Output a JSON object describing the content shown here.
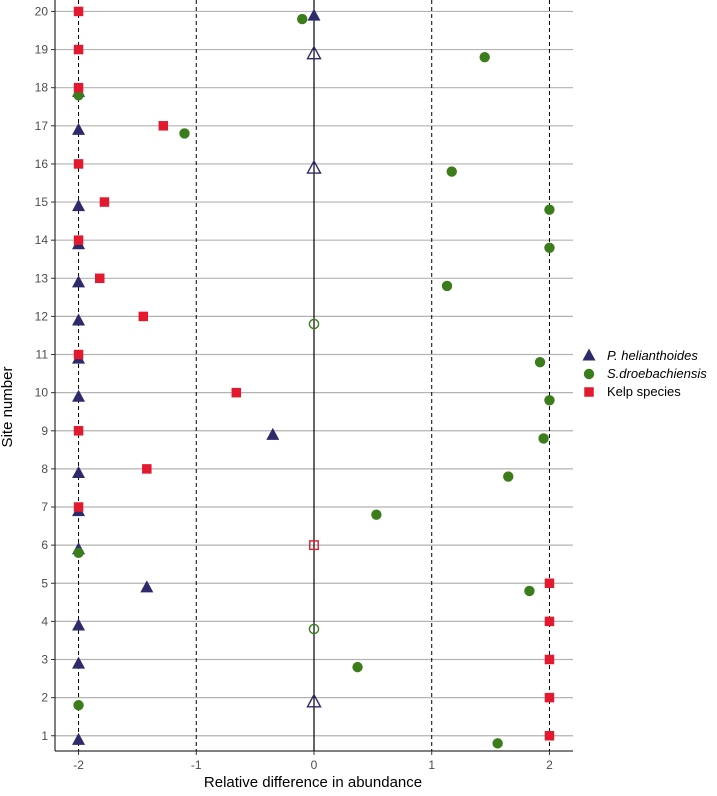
{
  "chart_data": {
    "type": "scatter",
    "xlabel": "Relative difference in abundance",
    "ylabel": "Site number",
    "xlim": [
      -2.2,
      2.2
    ],
    "ylim": [
      0.6,
      20.3
    ],
    "x_ticks": [
      "-2",
      "-1",
      "0",
      "1",
      "2"
    ],
    "y_ticks": [
      "1",
      "2",
      "3",
      "4",
      "5",
      "6",
      "7",
      "8",
      "9",
      "10",
      "11",
      "12",
      "13",
      "14",
      "15",
      "16",
      "17",
      "18",
      "19",
      "20"
    ],
    "x_tick_values": [
      -2,
      -1,
      0,
      1,
      2
    ],
    "y_tick_values": [
      1,
      2,
      3,
      4,
      5,
      6,
      7,
      8,
      9,
      10,
      11,
      12,
      13,
      14,
      15,
      16,
      17,
      18,
      19,
      20
    ],
    "vertical_reference_lines": {
      "dashed": [
        -2,
        -1,
        1,
        2
      ],
      "solid": [
        0
      ]
    },
    "grid": "horizontal major gridlines at each site",
    "legend_position": "right",
    "series": [
      {
        "name": "P. helianthoides",
        "italic": true,
        "marker": "triangle",
        "color": "#2e2a6b",
        "points": [
          {
            "site": 1,
            "x": -2,
            "filled": true
          },
          {
            "site": 2,
            "x": 0,
            "filled": false
          },
          {
            "site": 3,
            "x": -2,
            "filled": true
          },
          {
            "site": 4,
            "x": -2,
            "filled": true
          },
          {
            "site": 5,
            "x": -1.42,
            "filled": true
          },
          {
            "site": 6,
            "x": -2,
            "filled": true
          },
          {
            "site": 7,
            "x": -2,
            "filled": true
          },
          {
            "site": 8,
            "x": -2,
            "filled": true
          },
          {
            "site": 9,
            "x": -0.35,
            "filled": true
          },
          {
            "site": 10,
            "x": -2,
            "filled": true
          },
          {
            "site": 11,
            "x": -2,
            "filled": true
          },
          {
            "site": 12,
            "x": -2,
            "filled": true
          },
          {
            "site": 13,
            "x": -2,
            "filled": true
          },
          {
            "site": 14,
            "x": -2,
            "filled": true
          },
          {
            "site": 15,
            "x": -2,
            "filled": true
          },
          {
            "site": 16,
            "x": 0,
            "filled": false
          },
          {
            "site": 17,
            "x": -2,
            "filled": true
          },
          {
            "site": 18,
            "x": -2,
            "filled": true
          },
          {
            "site": 19,
            "x": 0,
            "filled": false
          },
          {
            "site": 20,
            "x": 0,
            "filled": true
          }
        ]
      },
      {
        "name": "S.droebachiensis",
        "italic": true,
        "marker": "circle",
        "color": "#3a7d1a",
        "points": [
          {
            "site": 1,
            "x": 1.56,
            "filled": true
          },
          {
            "site": 2,
            "x": -2,
            "filled": true
          },
          {
            "site": 3,
            "x": 0.37,
            "filled": true
          },
          {
            "site": 4,
            "x": 0,
            "filled": false
          },
          {
            "site": 5,
            "x": 1.83,
            "filled": true
          },
          {
            "site": 6,
            "x": -2,
            "filled": true
          },
          {
            "site": 7,
            "x": 0.53,
            "filled": true
          },
          {
            "site": 8,
            "x": 1.65,
            "filled": true
          },
          {
            "site": 9,
            "x": 1.95,
            "filled": true
          },
          {
            "site": 10,
            "x": 2,
            "filled": true
          },
          {
            "site": 11,
            "x": 1.92,
            "filled": true
          },
          {
            "site": 12,
            "x": 0,
            "filled": false
          },
          {
            "site": 13,
            "x": 1.13,
            "filled": true
          },
          {
            "site": 14,
            "x": 2,
            "filled": true
          },
          {
            "site": 15,
            "x": 2,
            "filled": true
          },
          {
            "site": 16,
            "x": 1.17,
            "filled": true
          },
          {
            "site": 17,
            "x": -1.1,
            "filled": true
          },
          {
            "site": 18,
            "x": -2,
            "filled": true
          },
          {
            "site": 19,
            "x": 1.45,
            "filled": true
          },
          {
            "site": 20,
            "x": -0.1,
            "filled": true
          }
        ]
      },
      {
        "name": "Kelp species",
        "italic": false,
        "marker": "square",
        "color": "#e3192f",
        "points": [
          {
            "site": 1,
            "x": 2,
            "filled": true
          },
          {
            "site": 2,
            "x": 2,
            "filled": true
          },
          {
            "site": 3,
            "x": 2,
            "filled": true
          },
          {
            "site": 4,
            "x": 2,
            "filled": true
          },
          {
            "site": 5,
            "x": 2,
            "filled": true
          },
          {
            "site": 6,
            "x": 0,
            "filled": false
          },
          {
            "site": 7,
            "x": -2,
            "filled": true
          },
          {
            "site": 8,
            "x": -1.42,
            "filled": true
          },
          {
            "site": 9,
            "x": -2,
            "filled": true
          },
          {
            "site": 10,
            "x": -0.66,
            "filled": true
          },
          {
            "site": 11,
            "x": -2,
            "filled": true
          },
          {
            "site": 12,
            "x": -1.45,
            "filled": true
          },
          {
            "site": 13,
            "x": -1.82,
            "filled": true
          },
          {
            "site": 14,
            "x": -2,
            "filled": true
          },
          {
            "site": 15,
            "x": -1.78,
            "filled": true
          },
          {
            "site": 16,
            "x": -2,
            "filled": true
          },
          {
            "site": 17,
            "x": -1.28,
            "filled": true
          },
          {
            "site": 18,
            "x": -2,
            "filled": true
          },
          {
            "site": 19,
            "x": -2,
            "filled": true
          },
          {
            "site": 20,
            "x": -2,
            "filled": true
          }
        ]
      }
    ]
  }
}
